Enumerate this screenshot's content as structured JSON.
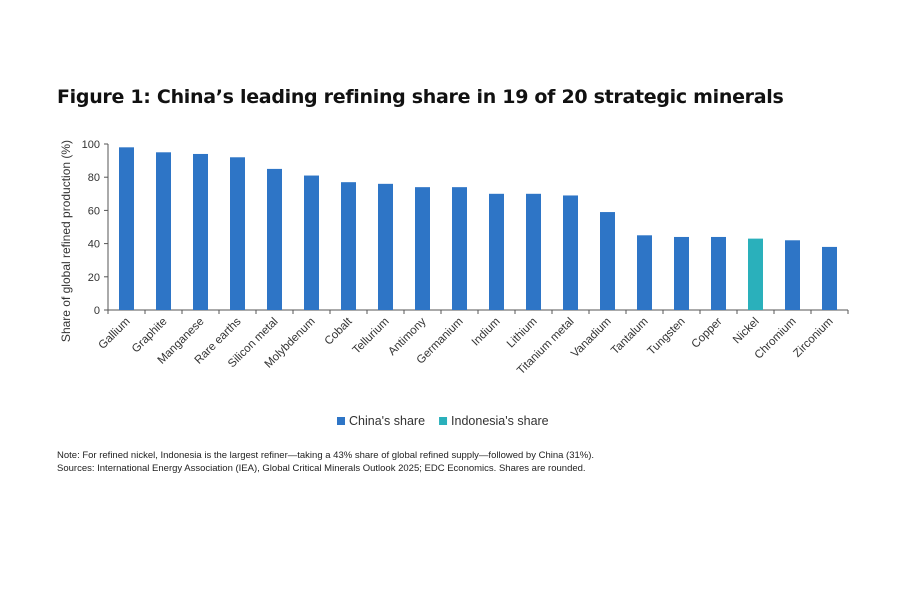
{
  "chart_data": {
    "type": "bar",
    "title": "Figure 1: China’s leading refining share in 19 of 20 strategic minerals",
    "ylabel": "Share of global refined production (%)",
    "xlabel": "",
    "ylim": [
      0,
      100
    ],
    "yticks": [
      0,
      20,
      40,
      60,
      80,
      100
    ],
    "grid": false,
    "legend_position": "bottom",
    "categories": [
      "Gallium",
      "Graphite",
      "Manganese",
      "Rare earths",
      "Silicon metal",
      "Molybdenum",
      "Cobalt",
      "Tellurium",
      "Antimony",
      "Germanium",
      "Indium",
      "Lithium",
      "Titanium metal",
      "Vanadium",
      "Tantalum",
      "Tungsten",
      "Copper",
      "Nickel",
      "Chromium",
      "Zirconium"
    ],
    "values": [
      98,
      95,
      94,
      92,
      85,
      81,
      77,
      76,
      74,
      74,
      70,
      70,
      69,
      59,
      45,
      44,
      44,
      43,
      42,
      38
    ],
    "series_by_bar": [
      "China's share",
      "China's share",
      "China's share",
      "China's share",
      "China's share",
      "China's share",
      "China's share",
      "China's share",
      "China's share",
      "China's share",
      "China's share",
      "China's share",
      "China's share",
      "China's share",
      "China's share",
      "China's share",
      "China's share",
      "Indonesia's share",
      "China's share",
      "China's share"
    ],
    "legend": [
      {
        "name": "China's share",
        "color": "#2e75c6"
      },
      {
        "name": "Indonesia's share",
        "color": "#2ab0bb"
      }
    ]
  },
  "notes": {
    "note": "Note: For refined nickel, Indonesia is the largest refiner—taking a 43% share of global refined supply—followed by China (31%).",
    "sources": "Sources: International Energy Association (IEA), Global Critical Minerals Outlook 2025; EDC Economics. Shares are rounded."
  }
}
